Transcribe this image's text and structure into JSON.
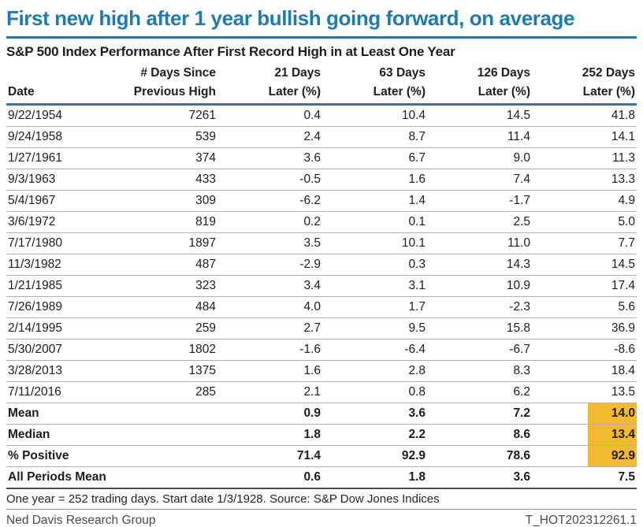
{
  "title": "First new high after 1 year bullish going forward, on average",
  "chart_data": {
    "type": "table",
    "title": "S&P 500 Index Performance After First Record High in at Least One Year",
    "columns": [
      {
        "line1": "",
        "line2": "Date"
      },
      {
        "line1": "# Days Since",
        "line2": "Previous High"
      },
      {
        "line1": "21 Days",
        "line2": "Later (%)"
      },
      {
        "line1": "63 Days",
        "line2": "Later (%)"
      },
      {
        "line1": "126 Days",
        "line2": "Later (%)"
      },
      {
        "line1": "252 Days",
        "line2": "Later (%)"
      }
    ],
    "rows": [
      [
        "9/22/1954",
        "7261",
        "0.4",
        "10.4",
        "14.5",
        "41.8"
      ],
      [
        "9/24/1958",
        "539",
        "2.4",
        "8.7",
        "11.4",
        "14.1"
      ],
      [
        "1/27/1961",
        "374",
        "3.6",
        "6.7",
        "9.0",
        "11.3"
      ],
      [
        "9/3/1963",
        "433",
        "-0.5",
        "1.6",
        "7.4",
        "13.3"
      ],
      [
        "5/4/1967",
        "309",
        "-6.2",
        "1.4",
        "-1.7",
        "4.9"
      ],
      [
        "3/6/1972",
        "819",
        "0.2",
        "0.1",
        "2.5",
        "5.0"
      ],
      [
        "7/17/1980",
        "1897",
        "3.5",
        "10.1",
        "11.0",
        "7.7"
      ],
      [
        "11/3/1982",
        "487",
        "-2.9",
        "0.3",
        "14.3",
        "14.5"
      ],
      [
        "1/21/1985",
        "323",
        "3.4",
        "3.1",
        "10.9",
        "17.4"
      ],
      [
        "7/26/1989",
        "484",
        "4.0",
        "1.7",
        "-2.3",
        "5.6"
      ],
      [
        "2/14/1995",
        "259",
        "2.7",
        "9.5",
        "15.8",
        "36.9"
      ],
      [
        "5/30/2007",
        "1802",
        "-1.6",
        "-6.4",
        "-6.7",
        "-8.6"
      ],
      [
        "3/28/2013",
        "1375",
        "1.6",
        "2.8",
        "8.3",
        "18.4"
      ],
      [
        "7/11/2016",
        "285",
        "2.1",
        "0.8",
        "6.2",
        "13.5"
      ]
    ],
    "summary_rows": [
      {
        "label": "Mean",
        "values": [
          "",
          "0.9",
          "3.6",
          "7.2",
          "14.0"
        ],
        "highlight_last": true
      },
      {
        "label": "Median",
        "values": [
          "",
          "1.8",
          "2.2",
          "8.6",
          "13.4"
        ],
        "highlight_last": true
      },
      {
        "label": "% Positive",
        "values": [
          "",
          "71.4",
          "92.9",
          "78.6",
          "92.9"
        ],
        "highlight_last": true
      },
      {
        "label": "All Periods Mean",
        "values": [
          "",
          "0.6",
          "1.8",
          "3.6",
          "7.5"
        ],
        "highlight_last": false
      }
    ]
  },
  "footnote": "One year = 252 trading days. Start date 1/3/1928. Source: S&P Dow Jones Indices",
  "footer": {
    "left": "Ned Davis Research Group",
    "right": "T_HOT202312261.1"
  },
  "colors": {
    "accent_blue": "#1b7cb5",
    "highlight_yellow": "#f3ba2f"
  }
}
